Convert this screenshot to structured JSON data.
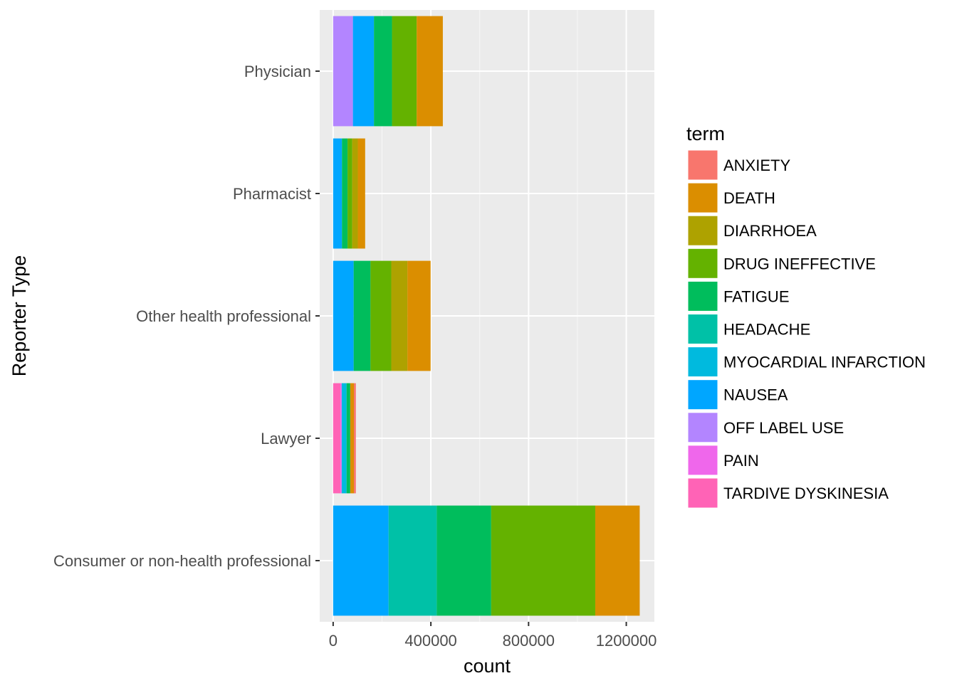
{
  "chart_data": {
    "type": "bar",
    "orientation": "horizontal",
    "stacked": true,
    "xlabel": "count",
    "ylabel": "Reporter Type",
    "xlim": [
      -55000,
      1315000
    ],
    "x_ticks": [
      0,
      400000,
      800000,
      1200000
    ],
    "x_tick_labels": [
      "0",
      "400000",
      "800000",
      "1200000"
    ],
    "grid": true,
    "legend_title": "term",
    "legend_position": "right",
    "categories": [
      "Physician",
      "Pharmacist",
      "Other health professional",
      "Lawyer",
      "Consumer or non-health professional"
    ],
    "terms": [
      {
        "name": "ANXIETY",
        "color": "#F8766D"
      },
      {
        "name": "DEATH",
        "color": "#DB8E00"
      },
      {
        "name": "DIARRHOEA",
        "color": "#AEA200"
      },
      {
        "name": "DRUG INEFFECTIVE",
        "color": "#64B200"
      },
      {
        "name": "FATIGUE",
        "color": "#00BD5C"
      },
      {
        "name": "HEADACHE",
        "color": "#00C1A7"
      },
      {
        "name": "MYOCARDIAL INFARCTION",
        "color": "#00BADE"
      },
      {
        "name": "NAUSEA",
        "color": "#00A6FF"
      },
      {
        "name": "OFF LABEL USE",
        "color": "#B385FF"
      },
      {
        "name": "PAIN",
        "color": "#EF67EB"
      },
      {
        "name": "TARDIVE DYSKINESIA",
        "color": "#FF63B6"
      }
    ],
    "series": [
      {
        "name": "ANXIETY",
        "values": [
          0,
          0,
          0,
          8000,
          0
        ]
      },
      {
        "name": "DEATH",
        "values": [
          107000,
          30000,
          95000,
          15000,
          182000
        ]
      },
      {
        "name": "DIARRHOEA",
        "values": [
          0,
          23000,
          66000,
          0,
          0
        ]
      },
      {
        "name": "DRUG INEFFECTIVE",
        "values": [
          101000,
          19000,
          85000,
          0,
          426000
        ]
      },
      {
        "name": "FATIGUE",
        "values": [
          74000,
          23000,
          69000,
          15000,
          223000
        ]
      },
      {
        "name": "HEADACHE",
        "values": [
          0,
          0,
          0,
          0,
          197000
        ]
      },
      {
        "name": "MYOCARDIAL INFARCTION",
        "values": [
          0,
          0,
          0,
          20000,
          0
        ]
      },
      {
        "name": "NAUSEA",
        "values": [
          86000,
          36000,
          84000,
          0,
          227000
        ]
      },
      {
        "name": "OFF LABEL USE",
        "values": [
          81000,
          0,
          0,
          0,
          0
        ]
      },
      {
        "name": "PAIN",
        "values": [
          0,
          0,
          0,
          5000,
          0
        ]
      },
      {
        "name": "TARDIVE DYSKINESIA",
        "values": [
          0,
          0,
          0,
          30000,
          0
        ]
      }
    ],
    "stack_order_left_to_right": [
      [
        "OFF LABEL USE",
        "NAUSEA",
        "FATIGUE",
        "DRUG INEFFECTIVE",
        "DEATH"
      ],
      [
        "NAUSEA",
        "FATIGUE",
        "DRUG INEFFECTIVE",
        "DIARRHOEA",
        "DEATH"
      ],
      [
        "NAUSEA",
        "FATIGUE",
        "DRUG INEFFECTIVE",
        "DIARRHOEA",
        "DEATH"
      ],
      [
        "TARDIVE DYSKINESIA",
        "PAIN",
        "MYOCARDIAL INFARCTION",
        "FATIGUE",
        "DEATH",
        "ANXIETY"
      ],
      [
        "NAUSEA",
        "HEADACHE",
        "FATIGUE",
        "DRUG INEFFECTIVE",
        "DEATH"
      ]
    ]
  }
}
